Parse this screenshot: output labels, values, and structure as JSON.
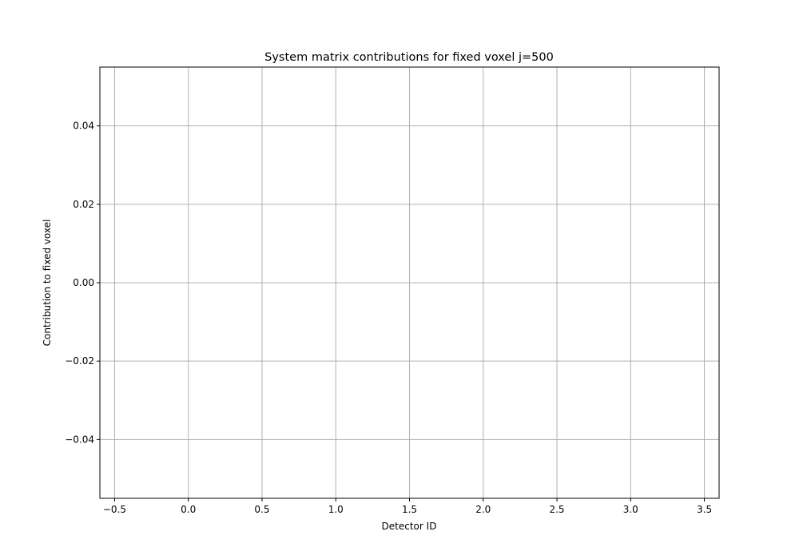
{
  "chart_data": {
    "type": "line",
    "title": "System matrix contributions for fixed voxel j=500",
    "xlabel": "Detector ID",
    "ylabel": "Contribution to fixed voxel",
    "xlim": [
      -0.6,
      3.6
    ],
    "ylim": [
      -0.055,
      0.055
    ],
    "xticks": [
      -0.5,
      0.0,
      0.5,
      1.0,
      1.5,
      2.0,
      2.5,
      3.0,
      3.5
    ],
    "xtick_labels": [
      "−0.5",
      "0.0",
      "0.5",
      "1.0",
      "1.5",
      "2.0",
      "2.5",
      "3.0",
      "3.5"
    ],
    "yticks": [
      -0.04,
      -0.02,
      0.0,
      0.02,
      0.04
    ],
    "ytick_labels": [
      "−0.04",
      "−0.02",
      "0.00",
      "0.02",
      "0.04"
    ],
    "grid": true,
    "series": []
  }
}
